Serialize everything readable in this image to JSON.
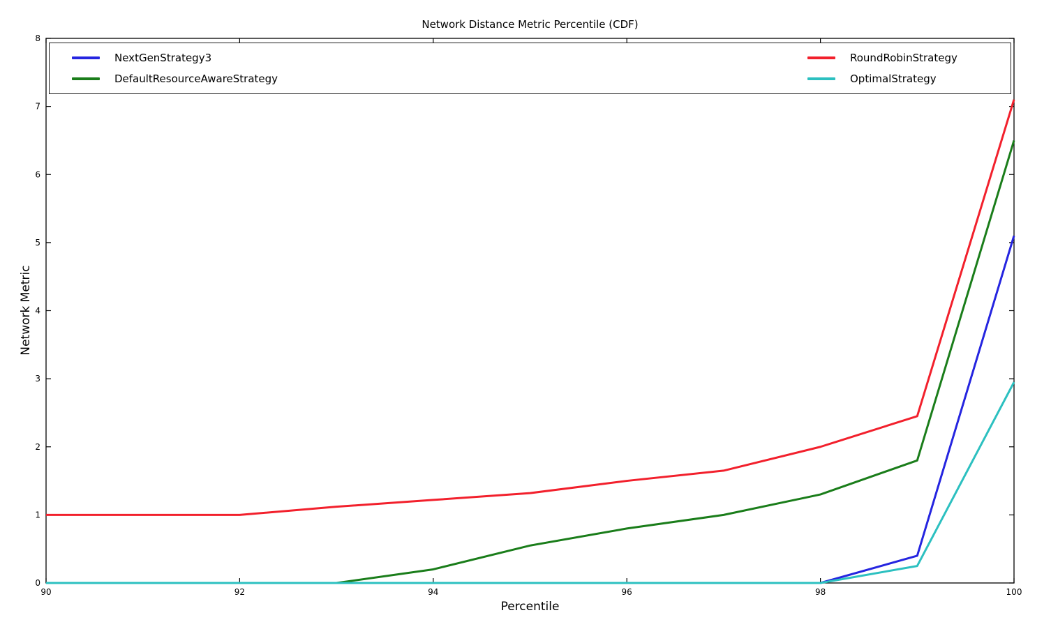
{
  "chart_data": {
    "type": "line",
    "title": "Network Distance Metric Percentile (CDF)",
    "xlabel": "Percentile",
    "ylabel": "Network Metric",
    "xlim": [
      90,
      100
    ],
    "ylim": [
      0,
      8
    ],
    "xticks": [
      90,
      92,
      94,
      96,
      98,
      100
    ],
    "yticks": [
      0,
      1,
      2,
      3,
      4,
      5,
      6,
      7,
      8
    ],
    "grid": false,
    "legend_position": "top full-width, 2 columns, inside axes",
    "x": [
      90,
      91,
      92,
      93,
      94,
      95,
      96,
      97,
      98,
      99,
      100
    ],
    "series": [
      {
        "name": "NextGenStrategy3",
        "color": "#2525e0",
        "values": [
          0,
          0,
          0,
          0,
          0,
          0,
          0,
          0,
          0,
          0.4,
          5.1
        ]
      },
      {
        "name": "DefaultResourceAwareStrategy",
        "color": "#1a7d1a",
        "values": [
          0,
          0,
          0,
          0,
          0.2,
          0.55,
          0.8,
          1.0,
          1.3,
          1.8,
          6.5
        ]
      },
      {
        "name": "RoundRobinStrategy",
        "color": "#f2202c",
        "values": [
          1.0,
          1.0,
          1.0,
          1.12,
          1.22,
          1.32,
          1.5,
          1.65,
          2.0,
          2.45,
          7.1
        ]
      },
      {
        "name": "OptimalStrategy",
        "color": "#2cc0c0",
        "values": [
          0,
          0,
          0,
          0,
          0,
          0,
          0,
          0,
          0,
          0.25,
          2.95
        ]
      }
    ]
  },
  "legend": {
    "entries": [
      {
        "label": "NextGenStrategy3",
        "color": "#2525e0"
      },
      {
        "label": "DefaultResourceAwareStrategy",
        "color": "#1a7d1a"
      },
      {
        "label": "RoundRobinStrategy",
        "color": "#f2202c"
      },
      {
        "label": "OptimalStrategy",
        "color": "#2cc0c0"
      }
    ]
  },
  "style": {
    "axis_color": "#000000",
    "background": "#ffffff",
    "line_width": 3,
    "tick_length": 7
  }
}
